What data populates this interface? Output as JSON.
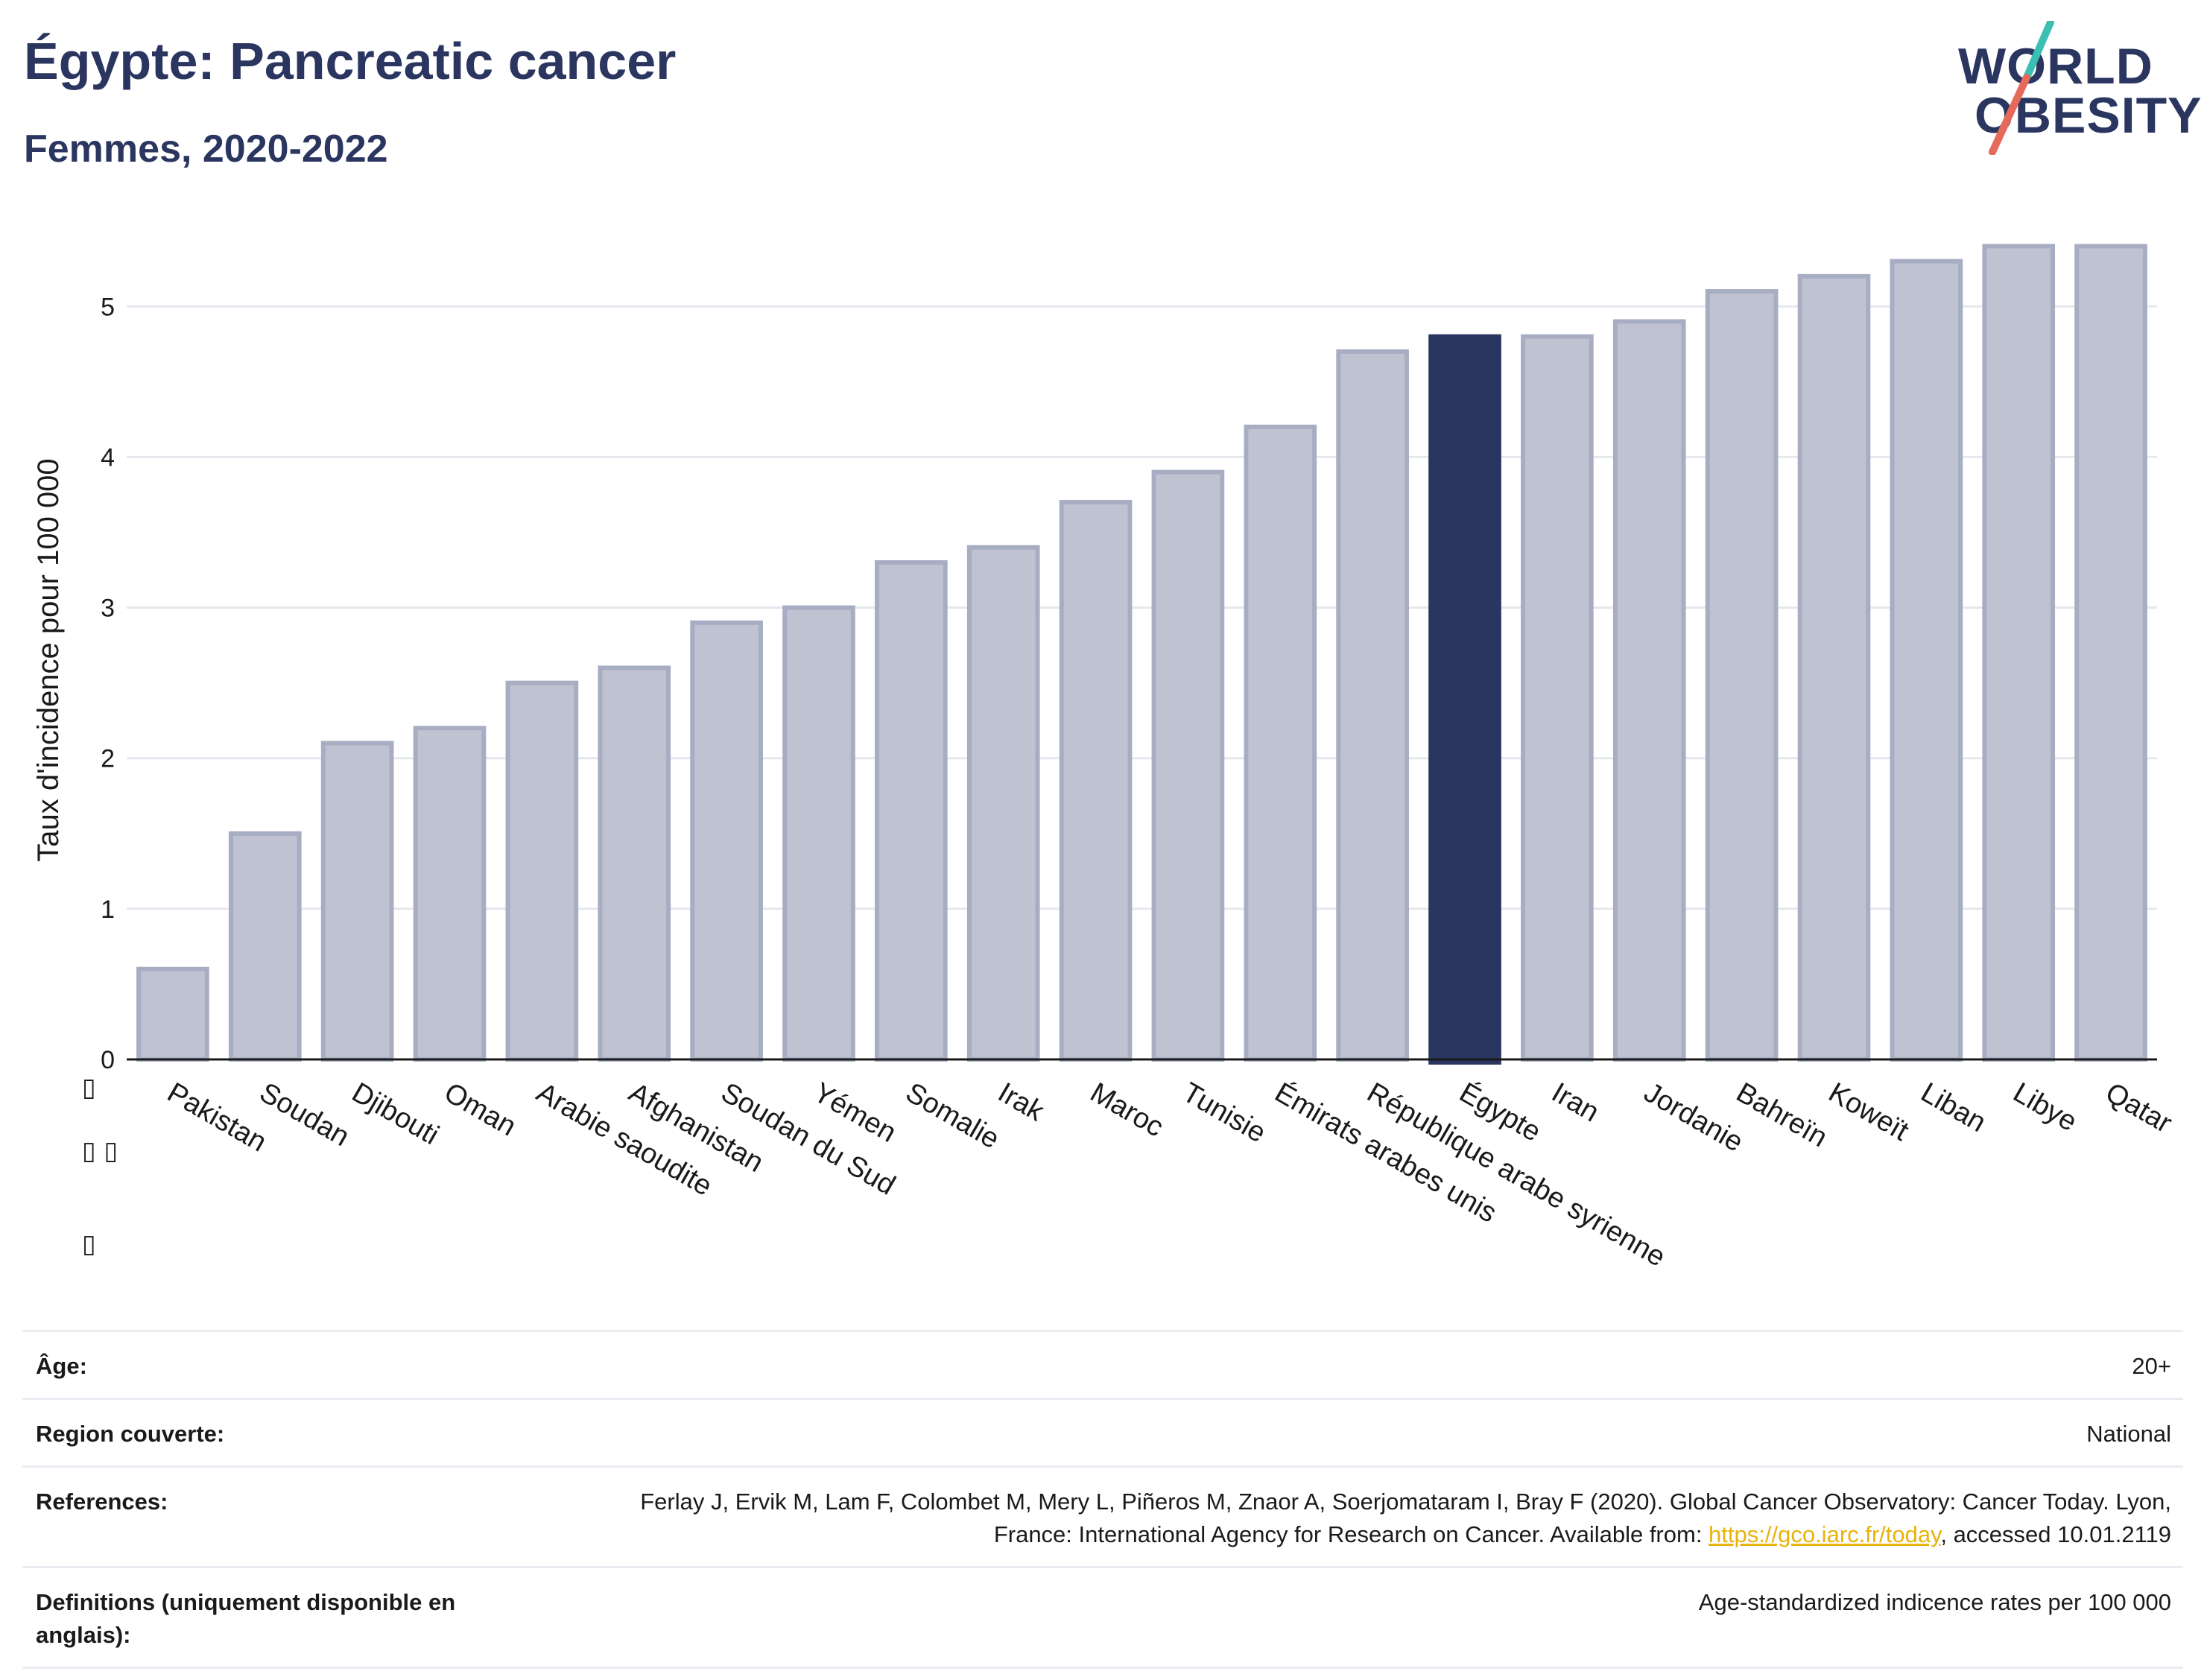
{
  "header": {
    "title": "Égypte: Pancreatic cancer",
    "subtitle": "Femmes, 2020-2022"
  },
  "logo": {
    "line1": "WORLD",
    "line2": "OBESITY",
    "slash_colors": [
      "#3bbfb2",
      "#e56a5a"
    ]
  },
  "colors": {
    "bar_default": "#bfc3d1",
    "bar_default_stroke": "#a7adc2",
    "bar_highlight": "#2a3560",
    "gridline": "#e6e8ee",
    "axis": "#1a1a1a"
  },
  "chart_data": {
    "type": "bar",
    "title": "Égypte: Pancreatic cancer",
    "subtitle": "Femmes, 2020-2022",
    "xlabel": "",
    "ylabel": "Taux d'incidence pour 100 000",
    "ylim": [
      0,
      5.6
    ],
    "yticks": [
      0,
      1,
      2,
      3,
      4,
      5
    ],
    "grid": true,
    "highlight": "Égypte",
    "categories": [
      "Pakistan",
      "Soudan",
      "Djibouti",
      "Oman",
      "Arabie saoudite",
      "Afghanistan",
      "Soudan du Sud",
      "Yémen",
      "Somalie",
      "Irak",
      "Maroc",
      "Tunisie",
      "Émirats arabes unis",
      "République arabe syrienne",
      "Égypte",
      "Iran",
      "Jordanie",
      "Bahreïn",
      "Koweït",
      "Liban",
      "Libye",
      "Qatar"
    ],
    "values": [
      0.6,
      1.5,
      2.1,
      2.2,
      2.5,
      2.6,
      2.9,
      3.0,
      3.3,
      3.4,
      3.7,
      3.9,
      4.2,
      4.7,
      4.8,
      4.8,
      4.9,
      5.1,
      5.2,
      5.3,
      5.4,
      5.4
    ]
  },
  "side_glyphs": [
    "▯",
    "▯ ▯",
    "▯"
  ],
  "metadata": [
    {
      "label": "Âge:",
      "value": "20+"
    },
    {
      "label": "Region couverte:",
      "value": "National"
    },
    {
      "label": "References:",
      "value": "Ferlay J, Ervik M, Lam F, Colombet M, Mery L, Piñeros M, Znaor A, Soerjomataram I, Bray F (2020). Global Cancer Observatory: Cancer Today. Lyon, France: International Agency for Research on Cancer. Available from: ",
      "link": "https://gco.iarc.fr/today",
      "suffix": ", accessed 10.01.2119"
    },
    {
      "label": "Definitions (uniquement disponible en anglais):",
      "value": "Age-standardized indicence rates per 100 000"
    }
  ]
}
